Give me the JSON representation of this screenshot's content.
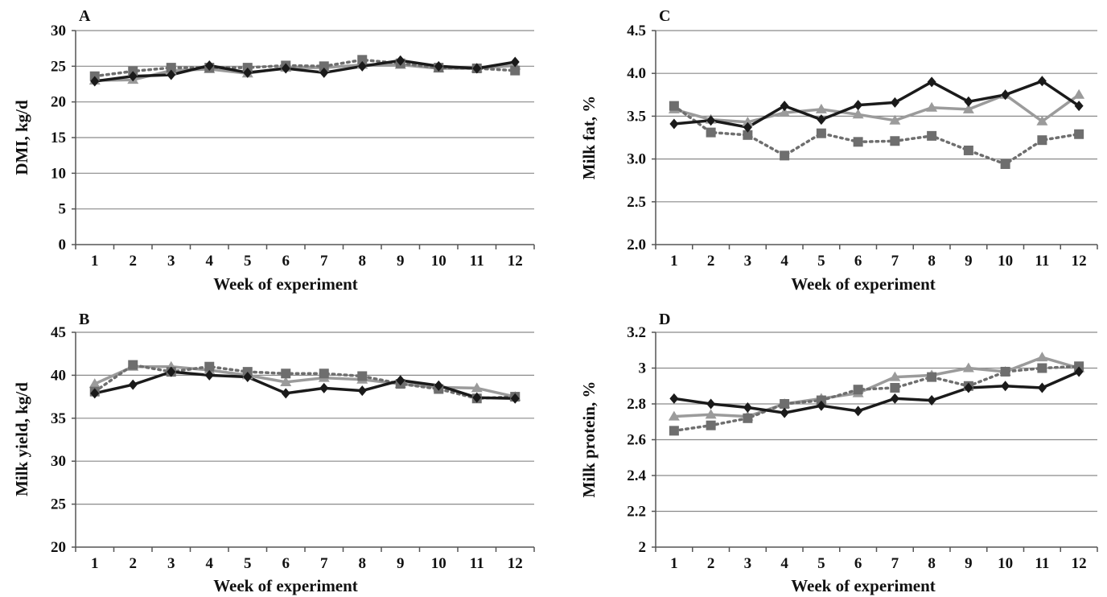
{
  "figure": {
    "background": "#ffffff"
  },
  "chart_data": [
    {
      "panel": "A",
      "type": "line",
      "xlabel": "Week of experiment",
      "ylabel": "DMI, kg/d",
      "x": [
        "1",
        "2",
        "3",
        "4",
        "5",
        "6",
        "7",
        "8",
        "9",
        "10",
        "11",
        "12"
      ],
      "ylim": [
        0,
        30
      ],
      "yticks": [
        "0",
        "5",
        "10",
        "15",
        "20",
        "25",
        "30"
      ],
      "grid": true,
      "series": [
        {
          "style": "solid-black-diamond",
          "color": "#1a1a1a",
          "values": [
            22.9,
            23.6,
            23.8,
            25.1,
            24.1,
            24.7,
            24.1,
            25.0,
            25.8,
            25.0,
            24.7,
            25.6
          ]
        },
        {
          "style": "dotted-gray-square",
          "color": "#6e6e6e",
          "values": [
            23.6,
            24.3,
            24.8,
            24.8,
            24.8,
            25.1,
            25.0,
            25.9,
            25.4,
            24.8,
            24.7,
            24.4
          ]
        },
        {
          "style": "solid-lightgray-triangle",
          "color": "#9b9b9b",
          "values": [
            23.0,
            23.1,
            24.4,
            24.6,
            24.0,
            24.8,
            24.8,
            25.2,
            25.2,
            24.7,
            24.7,
            25.1
          ]
        }
      ]
    },
    {
      "panel": "B",
      "type": "line",
      "xlabel": "Week of experiment",
      "ylabel": "Milk yield, kg/d",
      "x": [
        "1",
        "2",
        "3",
        "4",
        "5",
        "6",
        "7",
        "8",
        "9",
        "10",
        "11",
        "12"
      ],
      "ylim": [
        20,
        45
      ],
      "yticks": [
        "20",
        "25",
        "30",
        "35",
        "40",
        "45"
      ],
      "grid": true,
      "series": [
        {
          "style": "solid-black-diamond",
          "color": "#1a1a1a",
          "values": [
            37.9,
            38.9,
            40.4,
            40.0,
            39.8,
            37.9,
            38.5,
            38.2,
            39.4,
            38.8,
            37.4,
            37.3
          ]
        },
        {
          "style": "dotted-gray-square",
          "color": "#6e6e6e",
          "values": [
            38.1,
            41.2,
            40.4,
            41.0,
            40.4,
            40.2,
            40.2,
            39.9,
            39.0,
            38.4,
            37.3,
            37.5
          ]
        },
        {
          "style": "solid-lightgray-triangle",
          "color": "#9b9b9b",
          "values": [
            39.0,
            41.0,
            41.0,
            40.6,
            40.0,
            39.2,
            39.7,
            39.5,
            39.0,
            38.6,
            38.5,
            37.5
          ]
        }
      ]
    },
    {
      "panel": "C",
      "type": "line",
      "xlabel": "Week of experiment",
      "ylabel": "Milk fat, %",
      "x": [
        "1",
        "2",
        "3",
        "4",
        "5",
        "6",
        "7",
        "8",
        "9",
        "10",
        "11",
        "12"
      ],
      "ylim": [
        2.0,
        4.5
      ],
      "yticks": [
        "2.0",
        "2.5",
        "3.0",
        "3.5",
        "4.0",
        "4.5"
      ],
      "grid": true,
      "series": [
        {
          "style": "solid-black-diamond",
          "color": "#1a1a1a",
          "values": [
            3.41,
            3.45,
            3.37,
            3.62,
            3.46,
            3.63,
            3.66,
            3.9,
            3.67,
            3.75,
            3.91,
            3.62
          ]
        },
        {
          "style": "dotted-gray-square",
          "color": "#6e6e6e",
          "values": [
            3.62,
            3.31,
            3.28,
            3.04,
            3.3,
            3.2,
            3.21,
            3.27,
            3.1,
            2.94,
            3.22,
            3.29
          ]
        },
        {
          "style": "solid-lightgray-triangle",
          "color": "#9b9b9b",
          "values": [
            3.58,
            3.46,
            3.43,
            3.54,
            3.58,
            3.52,
            3.45,
            3.6,
            3.58,
            3.75,
            3.44,
            3.75
          ]
        }
      ]
    },
    {
      "panel": "D",
      "type": "line",
      "xlabel": "Week of experiment",
      "ylabel": "Milk protein, %",
      "x": [
        "1",
        "2",
        "3",
        "4",
        "5",
        "6",
        "7",
        "8",
        "9",
        "10",
        "11",
        "12"
      ],
      "ylim": [
        2.0,
        3.2
      ],
      "yticks": [
        "2",
        "2.2",
        "2.4",
        "2.6",
        "2.8",
        "3",
        "3.2"
      ],
      "grid": true,
      "series": [
        {
          "style": "solid-black-diamond",
          "color": "#1a1a1a",
          "values": [
            2.83,
            2.8,
            2.78,
            2.75,
            2.79,
            2.76,
            2.83,
            2.82,
            2.89,
            2.9,
            2.89,
            2.98
          ]
        },
        {
          "style": "dotted-gray-square",
          "color": "#6e6e6e",
          "values": [
            2.65,
            2.68,
            2.72,
            2.8,
            2.82,
            2.88,
            2.89,
            2.95,
            2.9,
            2.98,
            3.0,
            3.01
          ]
        },
        {
          "style": "solid-lightgray-triangle",
          "color": "#9b9b9b",
          "values": [
            2.73,
            2.74,
            2.73,
            2.8,
            2.83,
            2.86,
            2.95,
            2.96,
            3.0,
            2.98,
            3.06,
            3.0
          ]
        }
      ]
    }
  ]
}
